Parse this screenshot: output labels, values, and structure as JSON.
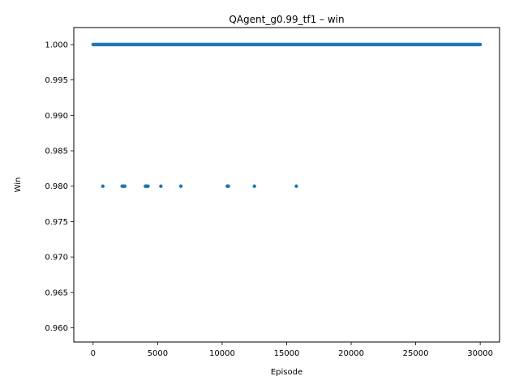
{
  "chart_data": {
    "type": "scatter",
    "title": "QAgent_g0.99_tf1 – win",
    "xlabel": "Episode",
    "ylabel": "Win",
    "xlim": [
      -1500,
      31500
    ],
    "ylim": [
      0.958,
      1.0024
    ],
    "xticks": [
      0,
      5000,
      10000,
      15000,
      20000,
      25000,
      30000
    ],
    "xtick_labels": [
      "0",
      "5000",
      "10000",
      "15000",
      "20000",
      "25000",
      "30000"
    ],
    "yticks": [
      0.96,
      0.965,
      0.97,
      0.975,
      0.98,
      0.985,
      0.99,
      0.995,
      1.0
    ],
    "ytick_labels": [
      "0.960",
      "0.965",
      "0.970",
      "0.975",
      "0.980",
      "0.985",
      "0.990",
      "0.995",
      "1.000"
    ],
    "grid": false,
    "series": [
      {
        "name": "win",
        "color": "#1f77b4",
        "dense_band": {
          "x_start": 0,
          "x_end": 30000,
          "y": 1.0
        },
        "outliers": [
          {
            "x": 750,
            "y": 0.98
          },
          {
            "x": 2250,
            "y": 0.98
          },
          {
            "x": 2350,
            "y": 0.98
          },
          {
            "x": 2450,
            "y": 0.98
          },
          {
            "x": 4050,
            "y": 0.98
          },
          {
            "x": 4150,
            "y": 0.98
          },
          {
            "x": 4250,
            "y": 0.98
          },
          {
            "x": 5250,
            "y": 0.98
          },
          {
            "x": 6800,
            "y": 0.98
          },
          {
            "x": 10400,
            "y": 0.98
          },
          {
            "x": 10480,
            "y": 0.98
          },
          {
            "x": 12500,
            "y": 0.98
          },
          {
            "x": 15750,
            "y": 0.98
          }
        ]
      }
    ]
  }
}
